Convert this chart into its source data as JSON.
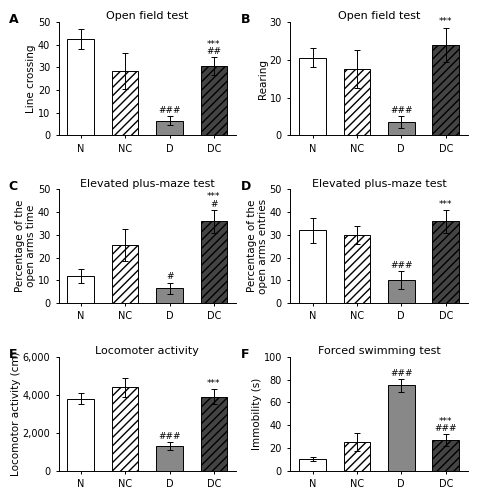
{
  "panels": [
    {
      "label": "A",
      "title": "Open field test",
      "ylabel": "Line crossing",
      "ylim": [
        0,
        50
      ],
      "yticks": [
        0,
        10,
        20,
        30,
        40,
        50
      ],
      "categories": [
        "N",
        "NC",
        "D",
        "DC"
      ],
      "means": [
        42.5,
        28.5,
        6.5,
        30.5
      ],
      "errors": [
        4.5,
        8.0,
        2.0,
        4.0
      ],
      "annotations": [
        {
          "cat": "D",
          "text": "###",
          "line": 0
        },
        {
          "cat": "DC",
          "text": "##",
          "line": 0
        },
        {
          "cat": "DC",
          "text": "***",
          "line": 1
        }
      ]
    },
    {
      "label": "B",
      "title": "Open field test",
      "ylabel": "Rearing",
      "ylim": [
        0,
        30
      ],
      "yticks": [
        0,
        10,
        20,
        30
      ],
      "categories": [
        "N",
        "NC",
        "D",
        "DC"
      ],
      "means": [
        20.5,
        17.5,
        3.5,
        24.0
      ],
      "errors": [
        2.5,
        5.0,
        1.5,
        4.5
      ],
      "annotations": [
        {
          "cat": "D",
          "text": "###",
          "line": 0
        },
        {
          "cat": "DC",
          "text": "***",
          "line": 0
        }
      ]
    },
    {
      "label": "C",
      "title": "Elevated plus-maze test",
      "ylabel": "Percentage of the\nopen arms time",
      "ylim": [
        0,
        50
      ],
      "yticks": [
        0,
        10,
        20,
        30,
        40,
        50
      ],
      "categories": [
        "N",
        "NC",
        "D",
        "DC"
      ],
      "means": [
        12.0,
        25.5,
        6.5,
        36.0
      ],
      "errors": [
        3.0,
        7.0,
        2.5,
        5.0
      ],
      "annotations": [
        {
          "cat": "D",
          "text": "#",
          "line": 0
        },
        {
          "cat": "DC",
          "text": "#",
          "line": 0
        },
        {
          "cat": "DC",
          "text": "***",
          "line": 1
        }
      ]
    },
    {
      "label": "D",
      "title": "Elevated plus-maze test",
      "ylabel": "Percentage of the\nopen arms entries",
      "ylim": [
        0,
        50
      ],
      "yticks": [
        0,
        10,
        20,
        30,
        40,
        50
      ],
      "categories": [
        "N",
        "NC",
        "D",
        "DC"
      ],
      "means": [
        32.0,
        30.0,
        10.0,
        36.0
      ],
      "errors": [
        5.5,
        4.0,
        4.0,
        5.0
      ],
      "annotations": [
        {
          "cat": "D",
          "text": "###",
          "line": 0
        },
        {
          "cat": "DC",
          "text": "***",
          "line": 0
        }
      ]
    },
    {
      "label": "E",
      "title": "Locomoter activity",
      "ylabel": "Locomotor activity (cm)",
      "ylim": [
        0,
        6000
      ],
      "yticks": [
        0,
        2000,
        4000,
        6000
      ],
      "ytick_labels": [
        "0",
        "2,000",
        "4,000",
        "6,000"
      ],
      "categories": [
        "N",
        "NC",
        "D",
        "DC"
      ],
      "means": [
        3800,
        4400,
        1300,
        3900
      ],
      "errors": [
        300,
        500,
        200,
        400
      ],
      "annotations": [
        {
          "cat": "D",
          "text": "###",
          "line": 0
        },
        {
          "cat": "DC",
          "text": "***",
          "line": 0
        }
      ]
    },
    {
      "label": "F",
      "title": "Forced swimming test",
      "ylabel": "Immobility (s)",
      "ylim": [
        0,
        100
      ],
      "yticks": [
        0,
        20,
        40,
        60,
        80,
        100
      ],
      "categories": [
        "N",
        "NC",
        "D",
        "DC"
      ],
      "means": [
        10.0,
        25.0,
        75.0,
        27.0
      ],
      "errors": [
        2.0,
        8.0,
        6.0,
        5.0
      ],
      "annotations": [
        {
          "cat": "D",
          "text": "###",
          "line": 0
        },
        {
          "cat": "DC",
          "text": "###",
          "line": 0
        },
        {
          "cat": "DC",
          "text": "***",
          "line": 1
        }
      ]
    }
  ],
  "bar_patterns": [
    "",
    "////",
    "",
    "////"
  ],
  "bar_colors": [
    "white",
    "white",
    "#888888",
    "#444444"
  ],
  "bar_edgecolor": "black",
  "background_color": "white",
  "title_fontsize": 8,
  "label_fontsize": 7.5,
  "tick_fontsize": 7,
  "annot_fontsize": 6.5
}
